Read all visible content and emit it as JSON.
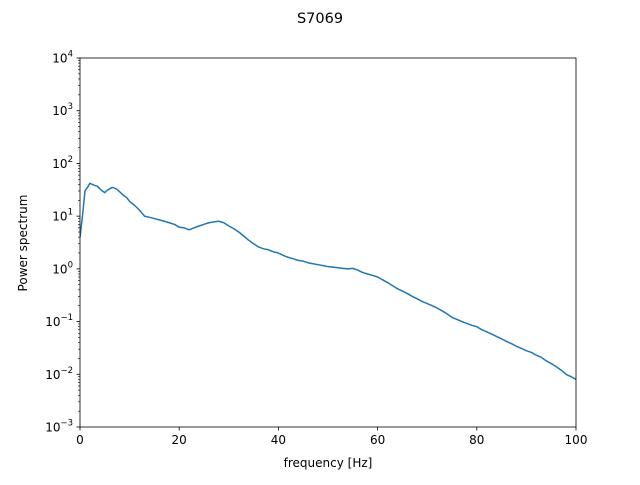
{
  "chart_data": {
    "type": "line",
    "title": "S7069",
    "xlabel": "frequency [Hz]",
    "ylabel": "Power spectrum",
    "xlim": [
      0,
      100
    ],
    "ylim": [
      0.001,
      10000
    ],
    "yscale": "log",
    "grid": false,
    "x_ticks": [
      "0",
      "20",
      "40",
      "60",
      "80",
      "100"
    ],
    "y_ticks": [
      {
        "base": "10",
        "exp": "−3"
      },
      {
        "base": "10",
        "exp": "−2"
      },
      {
        "base": "10",
        "exp": "−1"
      },
      {
        "base": "10",
        "exp": "0"
      },
      {
        "base": "10",
        "exp": "1"
      },
      {
        "base": "10",
        "exp": "2"
      },
      {
        "base": "10",
        "exp": "3"
      },
      {
        "base": "10",
        "exp": "4"
      }
    ],
    "series": [
      {
        "color": "#1f77b4",
        "x": [
          0,
          0.5,
          1,
          1.5,
          2,
          2.5,
          3,
          3.5,
          4,
          4.5,
          5,
          5.5,
          6,
          6.5,
          7,
          7.5,
          8,
          8.5,
          9,
          9.5,
          10,
          11,
          12,
          13,
          14,
          15,
          16,
          17,
          18,
          19,
          20,
          21,
          22,
          23,
          24,
          25,
          26,
          27,
          28,
          29,
          30,
          31,
          32,
          33,
          34,
          35,
          36,
          37,
          38,
          39,
          40,
          41,
          42,
          43,
          44,
          45,
          46,
          47,
          48,
          49,
          50,
          51,
          52,
          53,
          54,
          55,
          56,
          57,
          58,
          59,
          60,
          61,
          62,
          63,
          64,
          65,
          66,
          67,
          68,
          69,
          70,
          71,
          72,
          73,
          74,
          75,
          76,
          77,
          78,
          79,
          80,
          81,
          82,
          83,
          84,
          85,
          86,
          87,
          88,
          89,
          90,
          91,
          92,
          93,
          94,
          95,
          96,
          97,
          98,
          99,
          100
        ],
        "y": [
          4,
          10,
          30,
          35,
          42,
          40,
          38,
          37,
          33,
          30,
          28,
          31,
          33,
          35,
          34,
          32,
          29,
          26,
          24,
          22,
          19,
          16,
          13,
          10,
          9.5,
          9,
          8.5,
          8,
          7.5,
          7,
          6.2,
          6,
          5.5,
          6,
          6.5,
          7,
          7.5,
          7.8,
          8,
          7.5,
          6.5,
          5.8,
          5,
          4.2,
          3.5,
          3.0,
          2.6,
          2.4,
          2.3,
          2.1,
          2.0,
          1.8,
          1.65,
          1.55,
          1.45,
          1.4,
          1.3,
          1.25,
          1.2,
          1.15,
          1.1,
          1.08,
          1.05,
          1.02,
          1.0,
          1.02,
          0.95,
          0.85,
          0.8,
          0.75,
          0.7,
          0.62,
          0.55,
          0.48,
          0.42,
          0.38,
          0.34,
          0.3,
          0.27,
          0.24,
          0.22,
          0.2,
          0.18,
          0.16,
          0.14,
          0.12,
          0.11,
          0.1,
          0.092,
          0.085,
          0.08,
          0.07,
          0.064,
          0.058,
          0.052,
          0.047,
          0.042,
          0.038,
          0.034,
          0.031,
          0.028,
          0.026,
          0.023,
          0.021,
          0.018,
          0.016,
          0.014,
          0.012,
          0.01,
          0.009,
          0.008
        ]
      }
    ]
  }
}
